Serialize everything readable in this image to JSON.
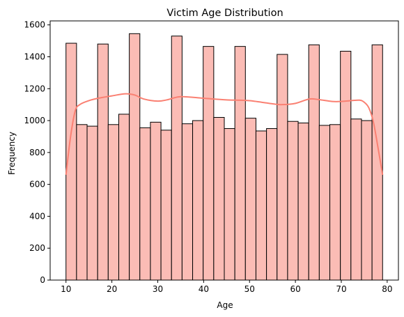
{
  "chart_data": {
    "type": "bar",
    "title": "Victim Age Distribution",
    "xlabel": "Age",
    "ylabel": "Frequency",
    "xlim": [
      6.55,
      82.45
    ],
    "ylim": [
      0,
      1625
    ],
    "xticks": [
      10,
      20,
      30,
      40,
      50,
      60,
      70,
      80
    ],
    "yticks": [
      0,
      200,
      400,
      600,
      800,
      1000,
      1200,
      1400,
      1600
    ],
    "grid": false,
    "bin_range": [
      10,
      79
    ],
    "bin_count": 30,
    "values": [
      1485,
      975,
      965,
      1480,
      975,
      1040,
      1545,
      955,
      990,
      940,
      1530,
      980,
      1000,
      1465,
      1020,
      950,
      1465,
      1015,
      935,
      950,
      1415,
      995,
      985,
      1475,
      970,
      975,
      1435,
      1010,
      1000,
      1475
    ],
    "kde": {
      "x": [
        10,
        11,
        12,
        13,
        15,
        17,
        20,
        23,
        25,
        27,
        30,
        32,
        35,
        40,
        45,
        50,
        55,
        57,
        60,
        63,
        65,
        68,
        70,
        72,
        74,
        75,
        76,
        77,
        78,
        79
      ],
      "y": [
        660,
        900,
        1060,
        1100,
        1125,
        1140,
        1155,
        1168,
        1160,
        1135,
        1122,
        1130,
        1150,
        1140,
        1130,
        1125,
        1105,
        1100,
        1108,
        1135,
        1132,
        1120,
        1120,
        1125,
        1128,
        1115,
        1080,
        990,
        830,
        660
      ]
    },
    "colors": {
      "bar_fill": "#fbbcb5",
      "kde_line": "#fa8072"
    }
  }
}
